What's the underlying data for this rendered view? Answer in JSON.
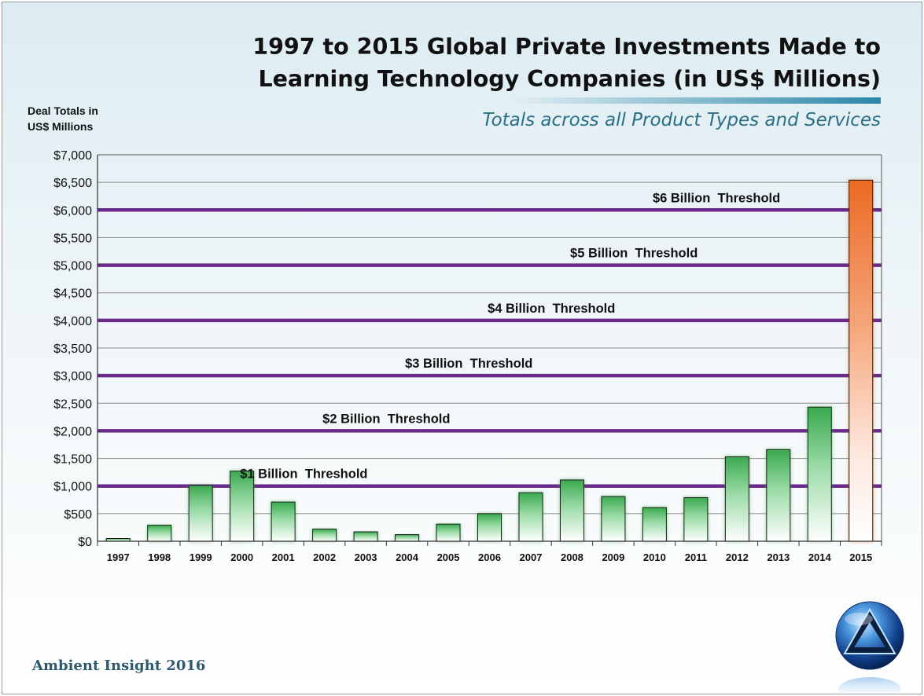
{
  "slide": {
    "title_line1": "1997 to 2015 Global Private Investments Made to",
    "title_line2": "Learning Technology Companies (in US$ Millions)",
    "subtitle": "Totals across all Product Types and Services",
    "footer": "Ambient Insight 2016",
    "logo_icon": "triangle-orb-logo-icon"
  },
  "chart_data": {
    "type": "bar",
    "title": "1997 to 2015 Global Private Investments Made to Learning Technology Companies (in US$ Millions)",
    "subtitle": "Totals across all Product Types and Services",
    "ylabel_line1": "Deal Totals in",
    "ylabel_line2": "US$ Millions",
    "xlabel": "",
    "ylim": [
      0,
      7000
    ],
    "yticks": [
      0,
      500,
      1000,
      1500,
      2000,
      2500,
      3000,
      3500,
      4000,
      4500,
      5000,
      5500,
      6000,
      6500,
      7000
    ],
    "ytick_labels": [
      "$0",
      "$500",
      "$1,000",
      "$1,500",
      "$2,000",
      "$2,500",
      "$3,000",
      "$3,500",
      "$4,000",
      "$4,500",
      "$5,000",
      "$5,500",
      "$6,000",
      "$6,500",
      "$7,000"
    ],
    "grid": true,
    "categories": [
      "1997",
      "1998",
      "1999",
      "2000",
      "2001",
      "2002",
      "2003",
      "2004",
      "2005",
      "2006",
      "2007",
      "2008",
      "2009",
      "2010",
      "2011",
      "2012",
      "2013",
      "2014",
      "2015"
    ],
    "values": [
      50,
      290,
      1010,
      1270,
      710,
      220,
      170,
      120,
      310,
      500,
      880,
      1110,
      810,
      610,
      790,
      1530,
      1660,
      2430,
      6540
    ],
    "colors": {
      "bar_fill": "#3aaa4e",
      "highlight_fill": "#ec6a23",
      "threshold_line": "#6a2a8c",
      "grid": "#8a8a8a"
    },
    "thresholds": [
      {
        "value": 1000,
        "label": "$1 Billion  Threshold",
        "label_year": "2001"
      },
      {
        "value": 2000,
        "label": "$2 Billion  Threshold",
        "label_year": "2003"
      },
      {
        "value": 3000,
        "label": "$3 Billion  Threshold",
        "label_year": "2005"
      },
      {
        "value": 4000,
        "label": "$4 Billion  Threshold",
        "label_year": "2007"
      },
      {
        "value": 5000,
        "label": "$5 Billion  Threshold",
        "label_year": "2009"
      },
      {
        "value": 6000,
        "label": "$6 Billion  Threshold",
        "label_year": "2011"
      }
    ],
    "highlight_category": "2015"
  }
}
